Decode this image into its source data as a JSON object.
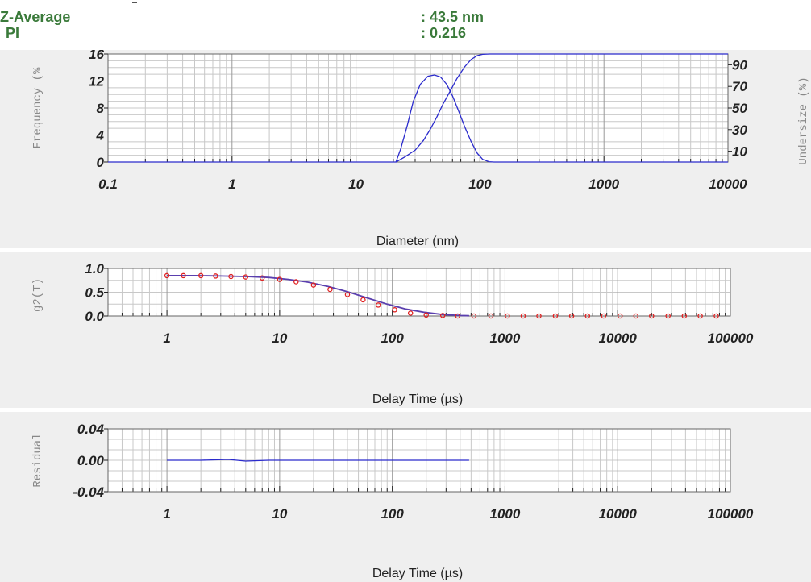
{
  "header": {
    "z_average_label": "Z-Average",
    "z_average_value": ": 43.5 nm",
    "pi_label": "PI",
    "pi_value": ": 0.216"
  },
  "colors": {
    "line": "#2b2bcc",
    "fit": "#5a3fae",
    "points": "#e02020",
    "label": "#3a7a3a",
    "panel": "#efefef"
  },
  "chart_data": [
    {
      "type": "line",
      "name": "size-distribution",
      "xlabel": "Diameter (nm)",
      "ylabel_left": "Frequency (%",
      "ylabel_right": "Undersize (%)",
      "x_scale": "log",
      "xlim": [
        0.1,
        10000
      ],
      "ylim_left": [
        0,
        16
      ],
      "ylim_right": [
        0,
        100
      ],
      "x_ticks": [
        0.1,
        1,
        10,
        100,
        1000,
        10000
      ],
      "x_tick_labels": [
        "0.1",
        "1",
        "10",
        "100",
        "1000",
        "10000"
      ],
      "y_ticks_left": [
        0,
        4,
        8,
        12,
        16
      ],
      "y_tick_labels_left": [
        "0",
        "4",
        "8",
        "12",
        "16"
      ],
      "y_ticks_right": [
        10,
        30,
        50,
        70,
        90
      ],
      "y_tick_labels_right": [
        "10",
        "30",
        "50",
        "70",
        "90"
      ],
      "grid": true,
      "series": [
        {
          "axis": "left",
          "x": [
            0.1,
            0.3,
            21,
            23,
            26,
            29,
            33,
            38,
            43,
            48,
            54,
            60,
            67,
            75,
            85,
            95,
            105,
            118,
            130,
            10000
          ],
          "y": [
            0,
            0,
            0,
            2,
            5.5,
            9,
            11.5,
            12.7,
            12.9,
            12.6,
            11.5,
            9.8,
            7.6,
            5.3,
            3,
            1.3,
            0.4,
            0.05,
            0,
            0
          ]
        },
        {
          "axis": "right",
          "x": [
            21,
            25,
            30,
            35,
            40,
            45,
            50,
            57,
            65,
            75,
            85,
            95,
            105,
            120,
            10000
          ],
          "y": [
            0,
            5,
            11,
            20,
            31,
            42,
            53,
            65,
            77,
            88,
            95,
            98.5,
            99.7,
            100,
            100
          ]
        }
      ]
    },
    {
      "type": "scatter",
      "name": "correlation",
      "xlabel": "Delay Time (µs)",
      "ylabel": "g2(T)",
      "x_scale": "log",
      "xlim": [
        0.3,
        100000
      ],
      "ylim": [
        0,
        1.0
      ],
      "x_ticks": [
        1,
        10,
        100,
        1000,
        10000,
        100000
      ],
      "x_tick_labels": [
        "1",
        "10",
        "100",
        "1000",
        "10000",
        "100000"
      ],
      "y_ticks": [
        0,
        0.5,
        1.0
      ],
      "y_tick_labels": [
        "0.0",
        "0.5",
        "1.0"
      ],
      "grid": true,
      "fit": {
        "x": [
          1,
          1.8,
          3,
          5,
          8,
          12,
          18,
          27,
          40,
          60,
          90,
          130,
          190,
          280,
          400,
          480
        ],
        "y": [
          0.85,
          0.85,
          0.84,
          0.83,
          0.81,
          0.77,
          0.71,
          0.62,
          0.51,
          0.38,
          0.25,
          0.15,
          0.08,
          0.03,
          0.01,
          0.005
        ]
      },
      "points": {
        "x": [
          1,
          1.4,
          2,
          2.7,
          3.7,
          5,
          7,
          10,
          14,
          20,
          28,
          40,
          55,
          75,
          105,
          145,
          200,
          280,
          380,
          530,
          750,
          1050,
          1450,
          2000,
          2800,
          3900,
          5400,
          7500,
          10500,
          14500,
          20000,
          28000,
          39000,
          54000,
          75000
        ],
        "y": [
          0.85,
          0.85,
          0.85,
          0.84,
          0.83,
          0.82,
          0.8,
          0.77,
          0.72,
          0.65,
          0.56,
          0.45,
          0.34,
          0.23,
          0.13,
          0.06,
          0.02,
          0.01,
          0,
          0,
          0,
          0,
          0,
          0,
          0,
          0,
          0,
          0,
          0,
          0,
          0,
          0,
          0,
          0,
          0
        ]
      }
    },
    {
      "type": "line",
      "name": "residual",
      "xlabel": "Delay Time (µs)",
      "ylabel": "Residual",
      "x_scale": "log",
      "xlim": [
        0.3,
        100000
      ],
      "ylim": [
        -0.04,
        0.04
      ],
      "x_ticks": [
        1,
        10,
        100,
        1000,
        10000,
        100000
      ],
      "x_tick_labels": [
        "1",
        "10",
        "100",
        "1000",
        "10000",
        "100000"
      ],
      "y_ticks": [
        -0.04,
        0,
        0.04
      ],
      "y_tick_labels": [
        "-0.04",
        "0.00",
        "0.04"
      ],
      "grid": true,
      "series": [
        {
          "x": [
            1,
            2,
            3.5,
            5,
            8,
            15,
            30,
            60,
            120,
            250,
            480
          ],
          "y": [
            0,
            0,
            0.001,
            -0.001,
            0,
            0,
            0,
            0,
            0,
            0,
            0
          ]
        }
      ]
    }
  ]
}
